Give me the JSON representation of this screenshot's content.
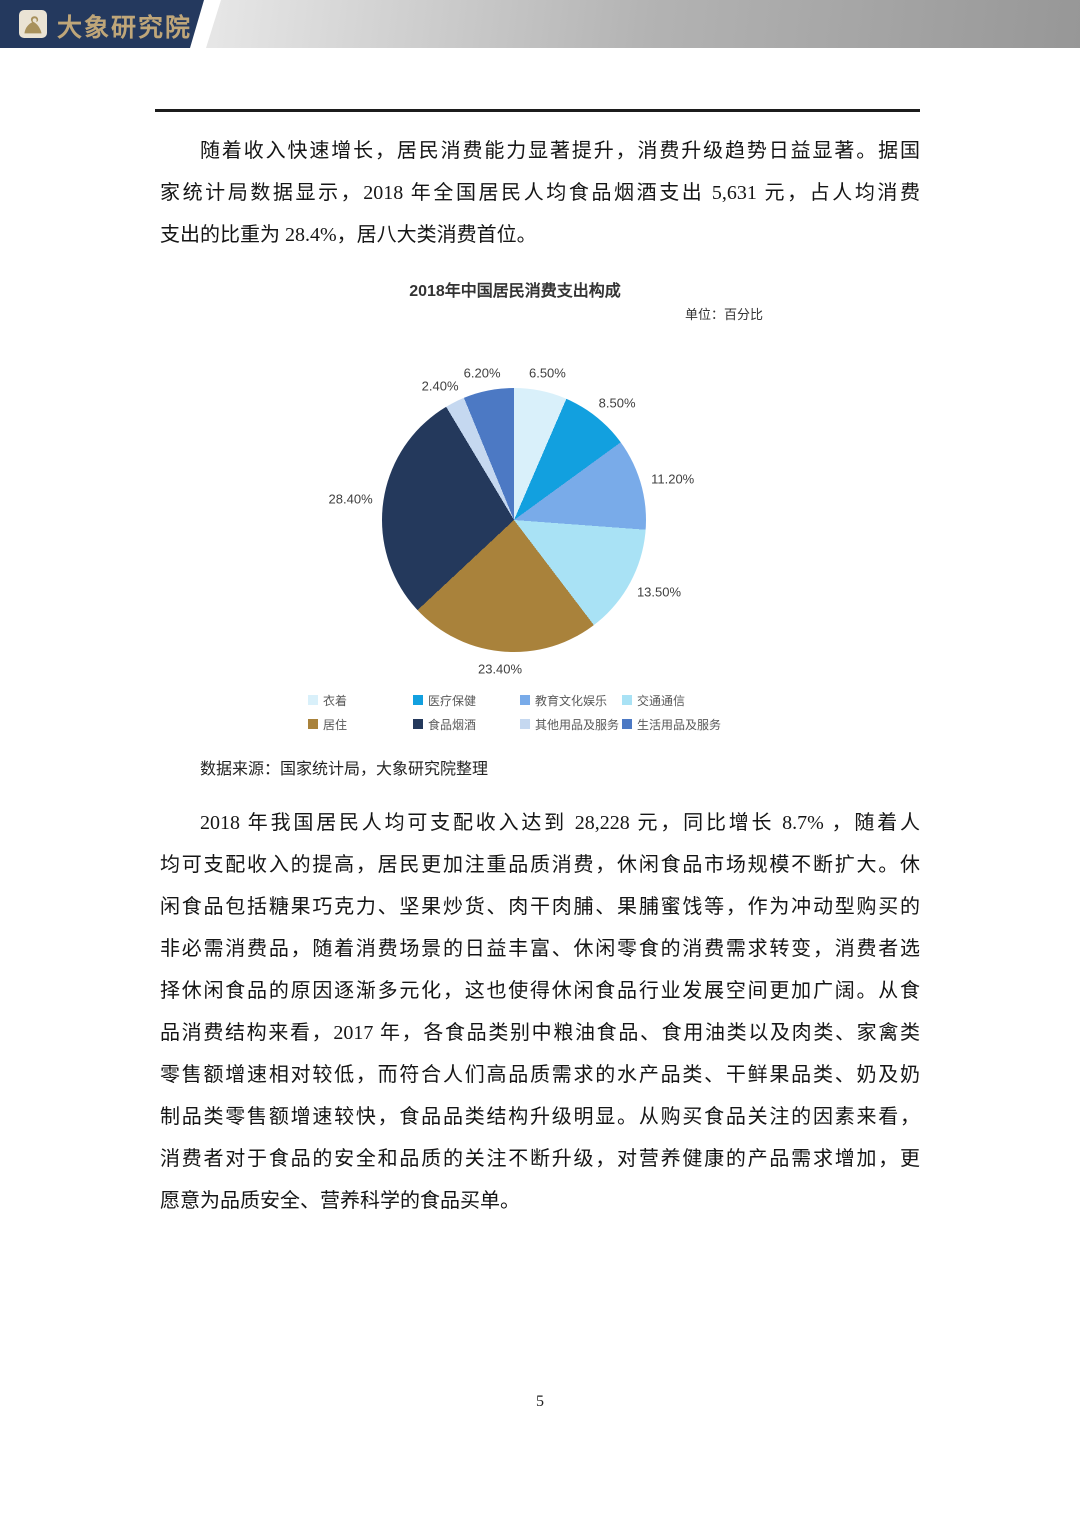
{
  "header": {
    "brand": "大象研究院"
  },
  "paragraph1": {
    "lines": [
      "随着收入快速增长，居民消费能力显著提升，消费升级趋势日益显著。据国",
      "家统计局数据显示，2018 年全国居民人均食品烟酒支出 5,631 元，占人均消费",
      "支出的比重为 28.4%，居八大类消费首位。"
    ]
  },
  "chart_data": {
    "type": "pie",
    "title": "2018年中国居民消费支出构成",
    "unit_label": "单位：百分比",
    "legend_position": "bottom",
    "start_angle_deg": 0,
    "direction": "clockwise",
    "slices": [
      {
        "label": "衣着",
        "value": 6.5,
        "display": "6.50%",
        "color": "#d9f0fa"
      },
      {
        "label": "医疗保健",
        "value": 8.5,
        "display": "8.50%",
        "color": "#12a0df"
      },
      {
        "label": "教育文化娱乐",
        "value": 11.2,
        "display": "11.20%",
        "color": "#79abe9"
      },
      {
        "label": "交通通信",
        "value": 13.5,
        "display": "13.50%",
        "color": "#a9e2f5"
      },
      {
        "label": "居住",
        "value": 23.4,
        "display": "23.40%",
        "color": "#a9823b"
      },
      {
        "label": "食品烟酒",
        "value": 28.4,
        "display": "28.40%",
        "color": "#24395c"
      },
      {
        "label": "其他用品及服务",
        "value": 2.4,
        "display": "2.40%",
        "color": "#c5d8f0"
      },
      {
        "label": "生活用品及服务",
        "value": 6.2,
        "display": "6.20%",
        "color": "#4c79c4"
      }
    ]
  },
  "source_note": "数据来源：国家统计局，大象研究院整理",
  "paragraph2": {
    "lines": [
      "2018 年我国居民人均可支配收入达到 28,228 元，同比增长 8.7% ，随着人",
      "均可支配收入的提高，居民更加注重品质消费，休闲食品市场规模不断扩大。休",
      "闲食品包括糖果巧克力、坚果炒货、肉干肉脯、果脯蜜饯等，作为冲动型购买的",
      "非必需消费品，随着消费场景的日益丰富、休闲零食的消费需求转变，消费者选",
      "择休闲食品的原因逐渐多元化，这也使得休闲食品行业发展空间更加广阔。从食",
      "品消费结构来看，2017 年，各食品类别中粮油食品、食用油类以及肉类、家禽类",
      "零售额增速相对较低，而符合人们高品质需求的水产品类、干鲜果品类、奶及奶",
      "制品类零售额增速较快，食品品类结构升级明显。从购买食品关注的因素来看，",
      "消费者对于食品的安全和品质的关注不断升级，对营养健康的产品需求增加，更",
      "愿意为品质安全、营养科学的食品买单。"
    ]
  },
  "page": {
    "number": "5"
  }
}
